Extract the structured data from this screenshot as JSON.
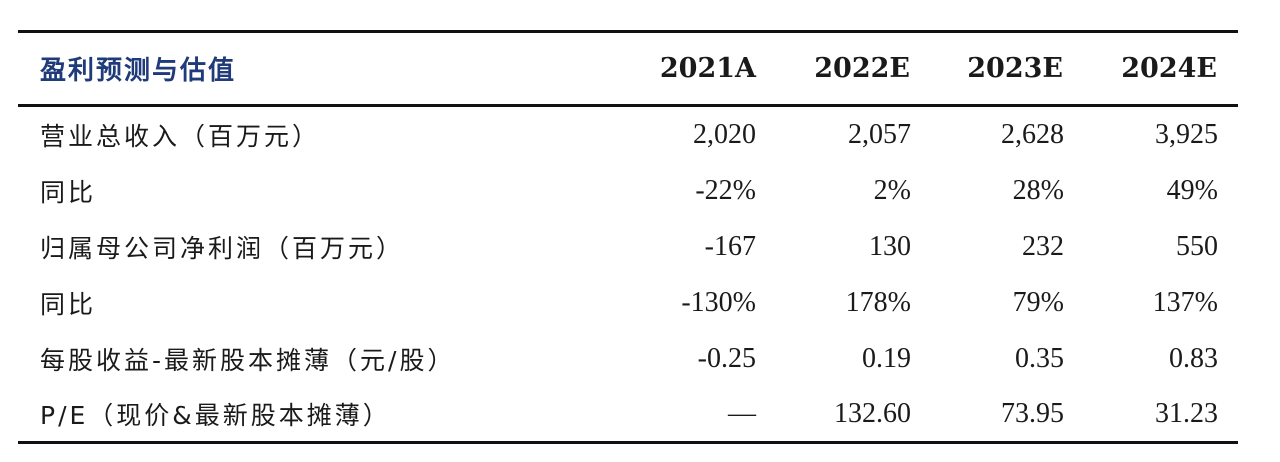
{
  "table": {
    "title": "盈利预测与估值",
    "columns": [
      "2021A",
      "2022E",
      "2023E",
      "2024E"
    ],
    "rows": [
      {
        "label": "营业总收入（百万元）",
        "values": [
          "2,020",
          "2,057",
          "2,628",
          "3,925"
        ]
      },
      {
        "label": "同比",
        "values": [
          "-22%",
          "2%",
          "28%",
          "49%"
        ]
      },
      {
        "label": "归属母公司净利润（百万元）",
        "values": [
          "-167",
          "130",
          "232",
          "550"
        ]
      },
      {
        "label": "同比",
        "values": [
          "-130%",
          "178%",
          "79%",
          "137%"
        ]
      },
      {
        "label": "每股收益-最新股本摊薄（元/股）",
        "values": [
          "-0.25",
          "0.19",
          "0.35",
          "0.83"
        ]
      },
      {
        "label": "P/E（现价&最新股本摊薄）",
        "values": [
          "—",
          "132.60",
          "73.95",
          "31.23"
        ]
      }
    ]
  }
}
